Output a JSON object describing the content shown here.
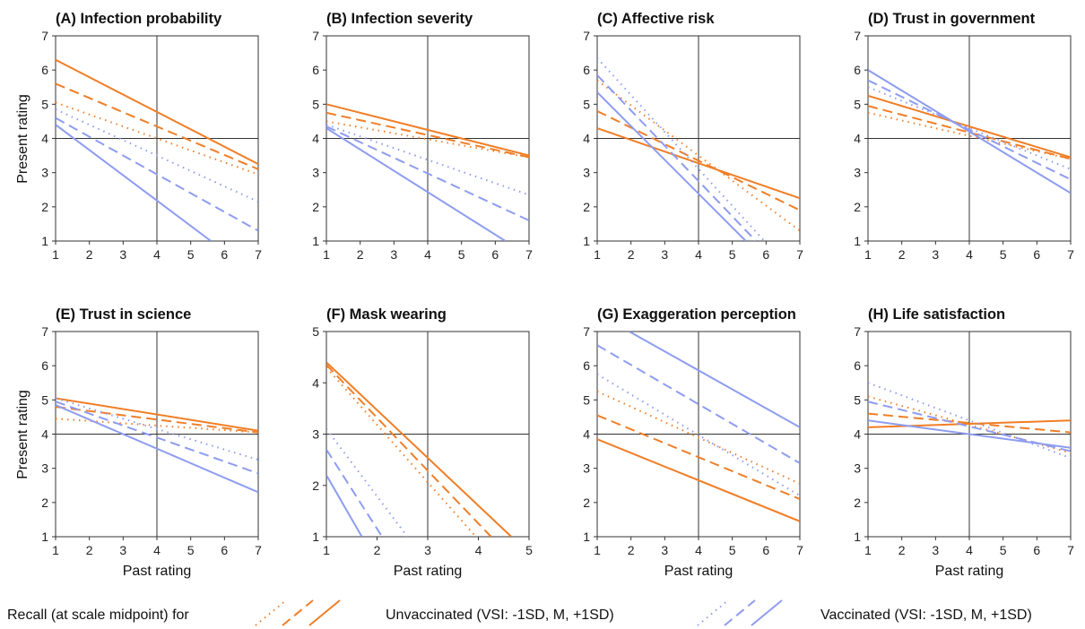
{
  "colors": {
    "unvaccinated": "#f07e26",
    "vaccinated": "#8e9cf0"
  },
  "ylabel": "Present rating",
  "xlabel": "Past rating",
  "legend": {
    "lead": "Recall (at scale midpoint) for",
    "unvaccinated": "Unvaccinated (VSI: -1SD, M, +1SD)",
    "vaccinated": "Vaccinated (VSI: -1SD, M, +1SD)",
    "vsi_levels": [
      "-1SD",
      "M",
      "+1SD"
    ]
  },
  "chart_data": [
    {
      "type": "line",
      "title": "(A) Infection probability",
      "xlim": [
        1,
        7
      ],
      "ylim": [
        1,
        7
      ],
      "midpoint": 4,
      "xticks": [
        "1",
        "2",
        "3",
        "4",
        "5",
        "6",
        "7"
      ],
      "yticks": [
        "1",
        "2",
        "3",
        "4",
        "5",
        "6",
        "7"
      ],
      "series": [
        {
          "group": "unvaccinated",
          "vsi": "-1SD",
          "x": [
            1,
            7
          ],
          "y": [
            5.05,
            2.95
          ]
        },
        {
          "group": "unvaccinated",
          "vsi": "M",
          "x": [
            1,
            7
          ],
          "y": [
            5.6,
            3.1
          ]
        },
        {
          "group": "unvaccinated",
          "vsi": "+1SD",
          "x": [
            1,
            7
          ],
          "y": [
            6.3,
            3.25
          ]
        },
        {
          "group": "vaccinated",
          "vsi": "-1SD",
          "x": [
            1,
            7
          ],
          "y": [
            4.85,
            2.15
          ]
        },
        {
          "group": "vaccinated",
          "vsi": "M",
          "x": [
            1,
            7
          ],
          "y": [
            4.6,
            1.3
          ]
        },
        {
          "group": "vaccinated",
          "vsi": "+1SD",
          "x": [
            1,
            5.6
          ],
          "y": [
            4.4,
            1.0
          ]
        }
      ]
    },
    {
      "type": "line",
      "title": "(B) Infection severity",
      "xlim": [
        1,
        7
      ],
      "ylim": [
        1,
        7
      ],
      "midpoint": 4,
      "xticks": [
        "1",
        "2",
        "3",
        "4",
        "5",
        "6",
        "7"
      ],
      "yticks": [
        "1",
        "2",
        "3",
        "4",
        "5",
        "6",
        "7"
      ],
      "series": [
        {
          "group": "unvaccinated",
          "vsi": "-1SD",
          "x": [
            1,
            7
          ],
          "y": [
            4.5,
            3.45
          ]
        },
        {
          "group": "unvaccinated",
          "vsi": "M",
          "x": [
            1,
            7
          ],
          "y": [
            4.75,
            3.45
          ]
        },
        {
          "group": "unvaccinated",
          "vsi": "+1SD",
          "x": [
            1,
            7
          ],
          "y": [
            5.0,
            3.5
          ]
        },
        {
          "group": "vaccinated",
          "vsi": "-1SD",
          "x": [
            1,
            7
          ],
          "y": [
            4.4,
            2.35
          ]
        },
        {
          "group": "vaccinated",
          "vsi": "M",
          "x": [
            1,
            7
          ],
          "y": [
            4.35,
            1.6
          ]
        },
        {
          "group": "vaccinated",
          "vsi": "+1SD",
          "x": [
            1,
            6.3
          ],
          "y": [
            4.3,
            1.0
          ]
        }
      ]
    },
    {
      "type": "line",
      "title": "(C) Affective risk",
      "xlim": [
        1,
        7
      ],
      "ylim": [
        1,
        7
      ],
      "midpoint": 4,
      "xticks": [
        "1",
        "2",
        "3",
        "4",
        "5",
        "6",
        "7"
      ],
      "yticks": [
        "1",
        "2",
        "3",
        "4",
        "5",
        "6",
        "7"
      ],
      "series": [
        {
          "group": "unvaccinated",
          "vsi": "-1SD",
          "x": [
            1,
            7
          ],
          "y": [
            5.7,
            1.3
          ]
        },
        {
          "group": "unvaccinated",
          "vsi": "M",
          "x": [
            1,
            7
          ],
          "y": [
            4.8,
            1.9
          ]
        },
        {
          "group": "unvaccinated",
          "vsi": "+1SD",
          "x": [
            1,
            7
          ],
          "y": [
            4.3,
            2.25
          ]
        },
        {
          "group": "vaccinated",
          "vsi": "-1SD",
          "x": [
            1,
            5.95
          ],
          "y": [
            6.35,
            1.0
          ]
        },
        {
          "group": "vaccinated",
          "vsi": "M",
          "x": [
            1,
            5.7
          ],
          "y": [
            5.85,
            1.0
          ]
        },
        {
          "group": "vaccinated",
          "vsi": "+1SD",
          "x": [
            1,
            5.4
          ],
          "y": [
            5.35,
            1.0
          ]
        }
      ]
    },
    {
      "type": "line",
      "title": "(D) Trust in government",
      "xlim": [
        1,
        7
      ],
      "ylim": [
        1,
        7
      ],
      "midpoint": 4,
      "xticks": [
        "1",
        "2",
        "3",
        "4",
        "5",
        "6",
        "7"
      ],
      "yticks": [
        "1",
        "2",
        "3",
        "4",
        "5",
        "6",
        "7"
      ],
      "series": [
        {
          "group": "unvaccinated",
          "vsi": "-1SD",
          "x": [
            1,
            7
          ],
          "y": [
            4.75,
            3.4
          ]
        },
        {
          "group": "unvaccinated",
          "vsi": "M",
          "x": [
            1,
            7
          ],
          "y": [
            4.95,
            3.4
          ]
        },
        {
          "group": "unvaccinated",
          "vsi": "+1SD",
          "x": [
            1,
            7
          ],
          "y": [
            5.25,
            3.45
          ]
        },
        {
          "group": "vaccinated",
          "vsi": "-1SD",
          "x": [
            1,
            7
          ],
          "y": [
            5.5,
            3.1
          ]
        },
        {
          "group": "vaccinated",
          "vsi": "M",
          "x": [
            1,
            7
          ],
          "y": [
            5.7,
            2.8
          ]
        },
        {
          "group": "vaccinated",
          "vsi": "+1SD",
          "x": [
            1,
            7
          ],
          "y": [
            6.0,
            2.4
          ]
        }
      ]
    },
    {
      "type": "line",
      "title": "(E) Trust in science",
      "xlim": [
        1,
        7
      ],
      "ylim": [
        1,
        7
      ],
      "midpoint": 4,
      "xticks": [
        "1",
        "2",
        "3",
        "4",
        "5",
        "6",
        "7"
      ],
      "yticks": [
        "1",
        "2",
        "3",
        "4",
        "5",
        "6",
        "7"
      ],
      "series": [
        {
          "group": "unvaccinated",
          "vsi": "-1SD",
          "x": [
            1,
            7
          ],
          "y": [
            4.45,
            4.05
          ]
        },
        {
          "group": "unvaccinated",
          "vsi": "M",
          "x": [
            1,
            7
          ],
          "y": [
            4.8,
            4.05
          ]
        },
        {
          "group": "unvaccinated",
          "vsi": "+1SD",
          "x": [
            1,
            7
          ],
          "y": [
            5.05,
            4.1
          ]
        },
        {
          "group": "vaccinated",
          "vsi": "-1SD",
          "x": [
            1,
            7
          ],
          "y": [
            5.05,
            3.25
          ]
        },
        {
          "group": "vaccinated",
          "vsi": "M",
          "x": [
            1,
            7
          ],
          "y": [
            4.95,
            2.85
          ]
        },
        {
          "group": "vaccinated",
          "vsi": "+1SD",
          "x": [
            1,
            7
          ],
          "y": [
            4.85,
            2.3
          ]
        }
      ]
    },
    {
      "type": "line",
      "title": "(F) Mask wearing",
      "xlim": [
        1,
        5
      ],
      "ylim": [
        1,
        5
      ],
      "midpoint": 3,
      "xticks": [
        "1",
        "2",
        "3",
        "4",
        "5"
      ],
      "yticks": [
        "1",
        "2",
        "3",
        "4",
        "5"
      ],
      "series": [
        {
          "group": "unvaccinated",
          "vsi": "-1SD",
          "x": [
            1,
            3.95
          ],
          "y": [
            4.3,
            1.0
          ]
        },
        {
          "group": "unvaccinated",
          "vsi": "M",
          "x": [
            1,
            4.25
          ],
          "y": [
            4.35,
            1.0
          ]
        },
        {
          "group": "unvaccinated",
          "vsi": "+1SD",
          "x": [
            1,
            4.65
          ],
          "y": [
            4.4,
            1.0
          ]
        },
        {
          "group": "vaccinated",
          "vsi": "-1SD",
          "x": [
            1,
            2.6
          ],
          "y": [
            3.1,
            1.0
          ]
        },
        {
          "group": "vaccinated",
          "vsi": "M",
          "x": [
            1,
            2.1
          ],
          "y": [
            2.7,
            1.0
          ]
        },
        {
          "group": "vaccinated",
          "vsi": "+1SD",
          "x": [
            1,
            1.7
          ],
          "y": [
            2.2,
            1.0
          ]
        }
      ]
    },
    {
      "type": "line",
      "title": "(G) Exaggeration perception",
      "xlim": [
        1,
        7
      ],
      "ylim": [
        1,
        7
      ],
      "midpoint": 4,
      "xticks": [
        "1",
        "2",
        "3",
        "4",
        "5",
        "6",
        "7"
      ],
      "yticks": [
        "1",
        "2",
        "3",
        "4",
        "5",
        "6",
        "7"
      ],
      "series": [
        {
          "group": "unvaccinated",
          "vsi": "-1SD",
          "x": [
            1,
            7
          ],
          "y": [
            5.25,
            2.55
          ]
        },
        {
          "group": "unvaccinated",
          "vsi": "M",
          "x": [
            1,
            7
          ],
          "y": [
            4.55,
            2.1
          ]
        },
        {
          "group": "unvaccinated",
          "vsi": "+1SD",
          "x": [
            1,
            7
          ],
          "y": [
            3.85,
            1.45
          ]
        },
        {
          "group": "vaccinated",
          "vsi": "-1SD",
          "x": [
            1,
            7
          ],
          "y": [
            5.75,
            2.2
          ]
        },
        {
          "group": "vaccinated",
          "vsi": "M",
          "x": [
            1,
            7
          ],
          "y": [
            6.6,
            3.15
          ]
        },
        {
          "group": "vaccinated",
          "vsi": "+1SD",
          "x": [
            1.95,
            7
          ],
          "y": [
            7.0,
            4.2
          ]
        }
      ]
    },
    {
      "type": "line",
      "title": "(H) Life satisfaction",
      "xlim": [
        1,
        7
      ],
      "ylim": [
        1,
        7
      ],
      "midpoint": 4,
      "xticks": [
        "1",
        "2",
        "3",
        "4",
        "5",
        "6",
        "7"
      ],
      "yticks": [
        "1",
        "2",
        "3",
        "4",
        "5",
        "6",
        "7"
      ],
      "series": [
        {
          "group": "unvaccinated",
          "vsi": "-1SD",
          "x": [
            1,
            7
          ],
          "y": [
            5.1,
            3.45
          ]
        },
        {
          "group": "unvaccinated",
          "vsi": "M",
          "x": [
            1,
            7
          ],
          "y": [
            4.6,
            4.05
          ]
        },
        {
          "group": "unvaccinated",
          "vsi": "+1SD",
          "x": [
            1,
            7
          ],
          "y": [
            4.2,
            4.4
          ]
        },
        {
          "group": "vaccinated",
          "vsi": "-1SD",
          "x": [
            1,
            7
          ],
          "y": [
            5.5,
            3.3
          ]
        },
        {
          "group": "vaccinated",
          "vsi": "M",
          "x": [
            1,
            7
          ],
          "y": [
            4.95,
            3.5
          ]
        },
        {
          "group": "vaccinated",
          "vsi": "+1SD",
          "x": [
            1,
            7
          ],
          "y": [
            4.4,
            3.6
          ]
        }
      ]
    }
  ]
}
